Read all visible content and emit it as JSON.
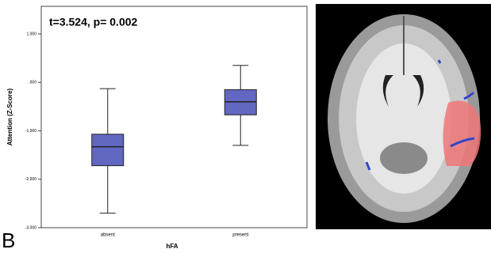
{
  "chart_data": {
    "type": "box",
    "annotation": "t=3.524, p= 0.002",
    "y_label": "Attention (Z-Score)",
    "x_label": "hFA",
    "panel_label": "B",
    "categories": [
      "absent",
      "present"
    ],
    "boxes": [
      {
        "min": -2.7,
        "q1": -1.72,
        "median": -1.33,
        "q3": -1.07,
        "max": -0.13
      },
      {
        "min": -1.3,
        "q1": -0.67,
        "median": -0.4,
        "q3": -0.15,
        "max": 0.35
      }
    ],
    "color": "#6267c2",
    "ylim": [
      -3,
      1.57
    ],
    "yticks": [
      {
        "value": 1,
        "label": "1.000"
      },
      {
        "value": 0,
        "label": ".000"
      },
      {
        "value": -1,
        "label": "-1.000"
      },
      {
        "value": -2,
        "label": "-2.000"
      },
      {
        "value": -3,
        "label": "-3.000"
      }
    ]
  }
}
